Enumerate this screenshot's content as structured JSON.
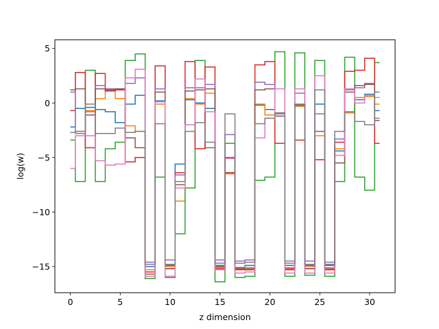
{
  "chart_data": {
    "type": "line",
    "drawstyle": "steps-mid",
    "title": "",
    "xlabel": "z dimension",
    "ylabel": "log(w)",
    "xlim": [
      -1.55,
      32.55
    ],
    "ylim": [
      -17.4,
      5.8
    ],
    "xticks": [
      0,
      5,
      10,
      15,
      20,
      25,
      30
    ],
    "yticks": [
      5,
      0,
      -5,
      -10,
      -15
    ],
    "ytick_labels": [
      "5",
      "0",
      "−5",
      "−10",
      "−15"
    ],
    "grid": false,
    "x": [
      0,
      1,
      2,
      3,
      4,
      5,
      6,
      7,
      8,
      9,
      10,
      11,
      12,
      13,
      14,
      15,
      16,
      17,
      18,
      19,
      20,
      21,
      22,
      23,
      24,
      25,
      26,
      27,
      28,
      29,
      30,
      31
    ],
    "series": [
      {
        "color": "#1f77b4",
        "values": [
          -2.2,
          -0.5,
          -0.4,
          -0.6,
          -0.8,
          -1.8,
          -0.1,
          0.7,
          -15.0,
          0.2,
          -14.9,
          -5.6,
          0.3,
          0.0,
          -0.5,
          -14.9,
          -6.4,
          -15.1,
          -14.9,
          -0.2,
          -0.6,
          -1.0,
          -14.9,
          -0.3,
          -14.9,
          -0.1,
          -14.9,
          -4.4,
          -0.9,
          0.3,
          0.8,
          -0.7
        ]
      },
      {
        "color": "#ff7f0e",
        "values": [
          -2.7,
          -2.6,
          -0.7,
          0.4,
          1.3,
          0.4,
          -2.1,
          -2.6,
          -15.3,
          -0.1,
          -15.0,
          -9.0,
          0.4,
          -0.1,
          0.9,
          -15.1,
          -6.5,
          -15.2,
          -15.1,
          -0.1,
          -1.1,
          -1.2,
          -15.1,
          -0.3,
          -15.0,
          -3.0,
          -15.1,
          -4.2,
          -0.9,
          0.5,
          0.6,
          -0.1
        ]
      },
      {
        "color": "#2ca02c",
        "values": [
          -3.4,
          -7.2,
          3.0,
          -7.2,
          -4.2,
          -3.6,
          3.9,
          4.5,
          -16.1,
          -6.8,
          -16.0,
          -12.0,
          -7.8,
          3.9,
          -4.1,
          -16.4,
          -3.7,
          -16.0,
          -15.9,
          -7.1,
          -6.8,
          4.7,
          -15.9,
          4.6,
          -15.8,
          3.9,
          -15.9,
          -7.2,
          4.2,
          -6.8,
          -8.0,
          3.7
        ]
      },
      {
        "color": "#d62728",
        "values": [
          -0.7,
          2.8,
          -4.1,
          2.7,
          1.1,
          1.2,
          -5.4,
          -5.0,
          -15.5,
          3.4,
          -15.2,
          -6.4,
          3.8,
          -4.2,
          3.3,
          -15.2,
          -6.4,
          -15.2,
          -15.3,
          3.5,
          3.8,
          -3.7,
          -15.2,
          -3.4,
          -15.2,
          -5.2,
          -15.3,
          -3.6,
          2.9,
          3.0,
          4.1,
          -3.7
        ]
      },
      {
        "color": "#9467bd",
        "values": [
          1.0,
          -2.8,
          -0.8,
          1.6,
          1.3,
          1.3,
          1.8,
          2.3,
          -14.6,
          1.3,
          -14.4,
          -6.6,
          1.4,
          1.4,
          1.7,
          -14.4,
          -2.9,
          -14.5,
          -14.4,
          1.9,
          1.7,
          -1.0,
          -14.5,
          0.9,
          -14.5,
          -1.0,
          -14.6,
          -3.3,
          1.2,
          1.4,
          1.8,
          -1.4
        ]
      },
      {
        "color": "#8c564b",
        "values": [
          1.2,
          1.3,
          -1.1,
          1.3,
          1.2,
          1.3,
          -3.2,
          -4.1,
          -15.7,
          1.0,
          -15.2,
          -7.5,
          1.1,
          1.2,
          1.3,
          -15.0,
          -5.0,
          -15.3,
          -15.2,
          1.2,
          1.3,
          -1.2,
          -15.3,
          -0.2,
          -15.2,
          -2.6,
          -15.2,
          -5.5,
          1.0,
          1.6,
          1.7,
          -1.6
        ]
      },
      {
        "color": "#e377c2",
        "values": [
          -6.0,
          -3.0,
          -3.0,
          -5.3,
          -5.7,
          -5.6,
          2.3,
          3.1,
          -15.9,
          0.1,
          -15.9,
          -7.8,
          -2.0,
          2.2,
          -0.8,
          -15.3,
          -5.1,
          -15.6,
          -15.5,
          -3.2,
          -1.4,
          1.3,
          -15.6,
          1.3,
          -15.6,
          2.5,
          -15.6,
          -4.8,
          1.3,
          0.0,
          0.7,
          0.5
        ]
      },
      {
        "color": "#7f7f7f",
        "values": [
          -2.7,
          -2.6,
          -0.1,
          -2.8,
          -2.8,
          -2.3,
          -2.7,
          -2.6,
          -14.8,
          -1.9,
          -14.8,
          -7.2,
          -2.6,
          -1.8,
          -3.6,
          -14.7,
          -1.0,
          -14.7,
          -14.6,
          -1.9,
          -1.4,
          -0.9,
          -14.7,
          -0.1,
          -14.8,
          1.2,
          -14.8,
          -2.6,
          -0.8,
          -1.7,
          -2.0,
          1.0
        ]
      }
    ]
  }
}
